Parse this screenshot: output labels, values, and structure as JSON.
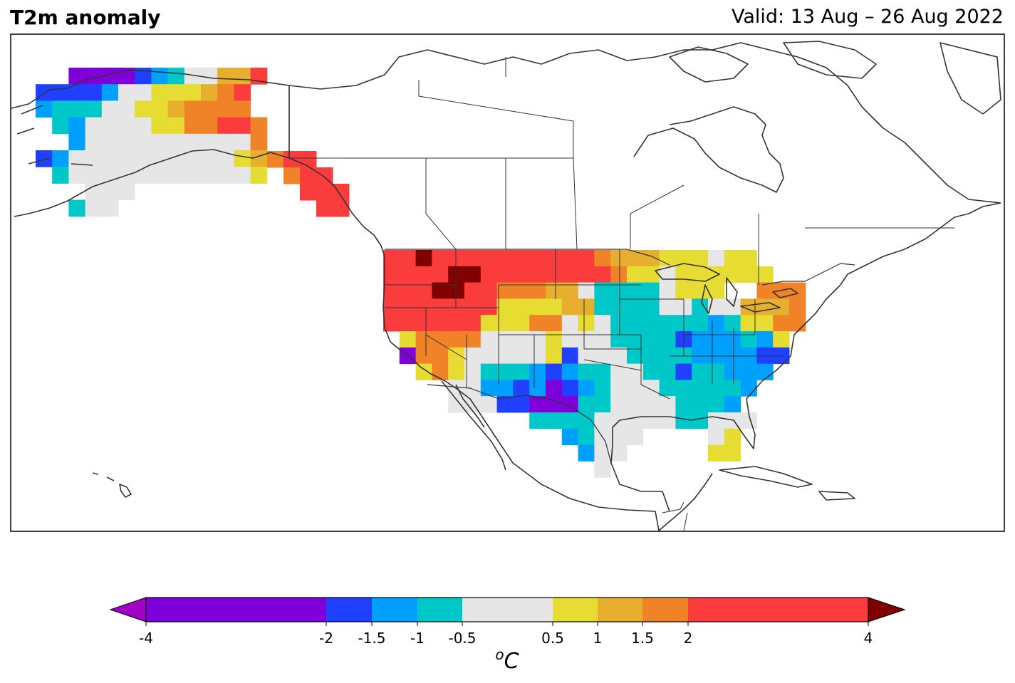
{
  "header": {
    "title": "T2m anomaly",
    "valid": "Valid: 13 Aug – 26 Aug 2022"
  },
  "colorbar": {
    "unit_base": "C",
    "unit_sup": "o",
    "ticks": [
      "-4",
      "-2",
      "-1.5",
      "-1",
      "-0.5",
      "0.5",
      "1",
      "1.5",
      "2",
      "4"
    ],
    "bounds": [
      -4,
      -2,
      -1.5,
      -1,
      -0.5,
      0.5,
      1,
      1.5,
      2,
      4
    ],
    "colors": [
      "#8000dc",
      "#2040ff",
      "#00a0ff",
      "#00c8c8",
      "#e6e6e6",
      "#e6dc32",
      "#e6af2d",
      "#f08228",
      "#fa3c3c"
    ],
    "under_color": "#a000c8",
    "over_color": "#800000"
  },
  "legend": {
    "cold_extreme": "#8000dc",
    "neutral": "#e6e6e6",
    "warm_extreme": "#800000"
  },
  "map_style": {
    "coastline_color": "#333333",
    "border_color": "#333333",
    "frame_color": "#000000"
  }
}
